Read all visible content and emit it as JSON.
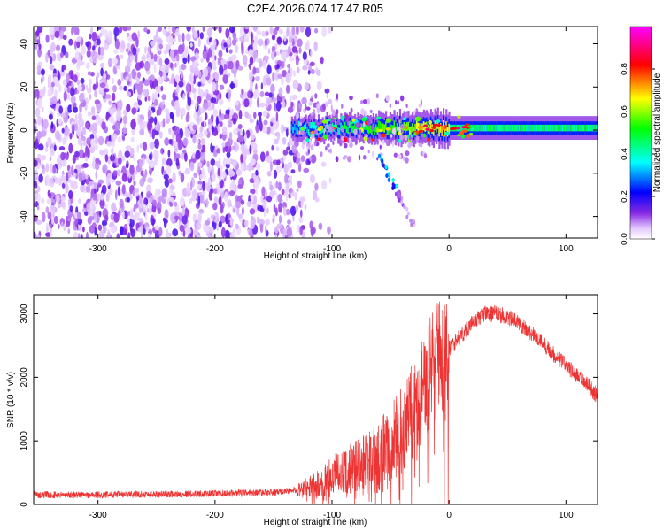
{
  "title": "C2E4.2026.074.17.47.R05",
  "chart_data": [
    {
      "type": "heatmap",
      "xlabel": "Height of straight line (km)",
      "ylabel": "Frequency (Hz)",
      "xlim": [
        -355,
        127
      ],
      "ylim": [
        -50,
        48
      ],
      "x_ticks": [
        -300,
        -200,
        -100,
        0,
        100
      ],
      "y_ticks": [
        -40,
        -20,
        0,
        20,
        40
      ],
      "colorbar": {
        "label": "Normalized spectral amplitude",
        "range": [
          0,
          1
        ],
        "ticks": [
          0.0,
          0.2,
          0.4,
          0.6,
          0.8
        ],
        "colormap": [
          "#ffffff",
          "#e3c8ff",
          "#8a2be2",
          "#0000ff",
          "#00ffff",
          "#00ff00",
          "#ffff00",
          "#ff0000",
          "#ff00ff"
        ]
      },
      "features": {
        "noise_region_x": [
          -355,
          -125
        ],
        "carrier_start_x": -135,
        "carrier_frequency": 1,
        "branch": {
          "x": [
            -60,
            -45,
            -30
          ],
          "y": [
            -12,
            -28,
            -45
          ]
        }
      },
      "grid": false
    },
    {
      "type": "line",
      "xlabel": "Height of straight line (km)",
      "ylabel": "SNR (10 * v/v)",
      "xlim": [
        -355,
        127
      ],
      "ylim": [
        0,
        3300
      ],
      "x_ticks": [
        -300,
        -200,
        -100,
        0,
        100
      ],
      "y_ticks": [
        0,
        1000,
        2000,
        3000
      ],
      "color": "#ee3333",
      "series": [
        {
          "x": [
            -355,
            -300,
            -250,
            -200,
            -150,
            -130,
            -110,
            -100,
            -90,
            -80,
            -70,
            -60,
            -50,
            -40,
            -30,
            -20,
            -10,
            0,
            10,
            20,
            30,
            40,
            50,
            60,
            70,
            80,
            90,
            100,
            110,
            120,
            127
          ],
          "y": [
            150,
            150,
            160,
            170,
            190,
            230,
            320,
            450,
            550,
            600,
            650,
            750,
            900,
            1200,
            1550,
            1950,
            2250,
            2450,
            2650,
            2850,
            3000,
            3000,
            2950,
            2850,
            2700,
            2550,
            2350,
            2200,
            2000,
            1850,
            1700
          ]
        }
      ],
      "grid": false
    }
  ]
}
